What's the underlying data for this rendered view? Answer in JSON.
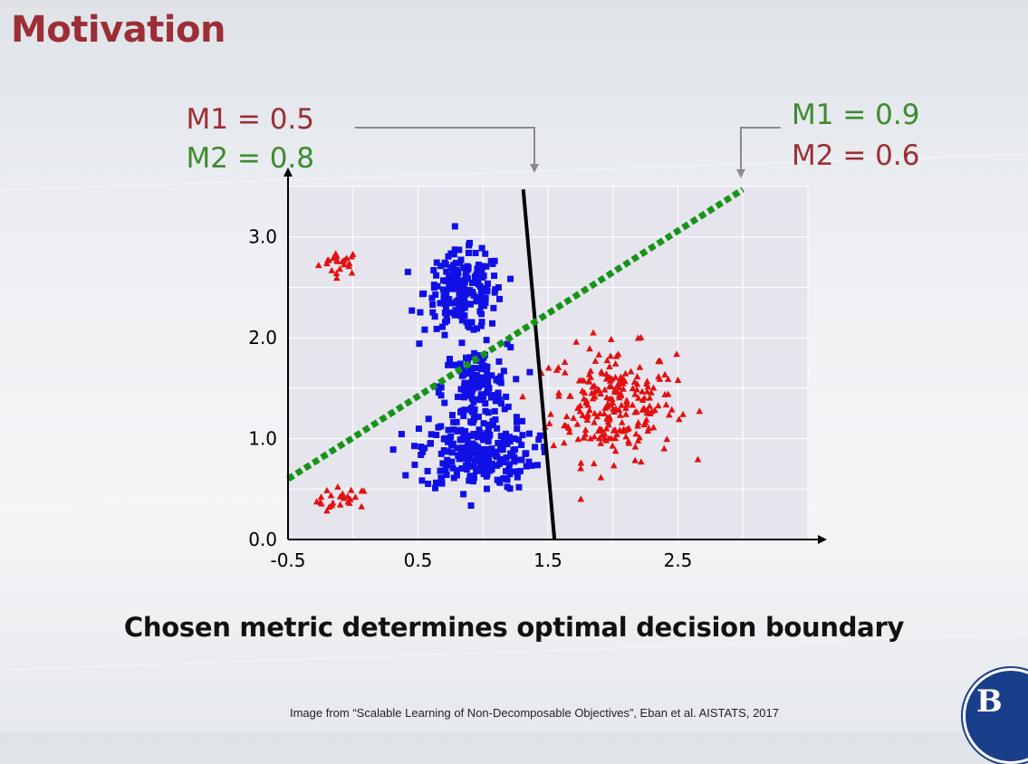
{
  "slide": {
    "title": "Motivation",
    "caption": "Chosen metric determines optimal decision boundary",
    "source": "Image from “Scalable Learning of Non-Decomposable Objectives”, Eban et al. AISTATS, 2017",
    "logo_mark": "B"
  },
  "annotations": {
    "left": {
      "m1": "M1 = 0.5",
      "m2": "M2 = 0.8"
    },
    "right": {
      "m1": "M1 = 0.9",
      "m2": "M2 = 0.6"
    }
  },
  "colors": {
    "m1": "#9b2f35",
    "m2": "#3d8b2f",
    "positive": "#e31010",
    "negative": "#1010e6",
    "plot_bg": "#e6e5ee",
    "solid_boundary": "#000000",
    "dotted_boundary": "#179417"
  },
  "chart_data": {
    "type": "scatter",
    "xlim": [
      -0.5,
      3.5
    ],
    "ylim": [
      0.0,
      3.5
    ],
    "x_ticks": [
      "-0.5",
      "0.5",
      "1.5",
      "2.5"
    ],
    "x_tick_values": [
      -0.5,
      0.5,
      1.5,
      2.5
    ],
    "y_ticks": [
      "0.0",
      "1.0",
      "2.0",
      "3.0"
    ],
    "y_tick_values": [
      0.0,
      1.0,
      2.0,
      3.0
    ],
    "grid": true,
    "series": [
      {
        "marker": "triangle",
        "color": "#e31010",
        "clusters": [
          {
            "cx": -0.1,
            "cy": 2.75,
            "sx": 0.08,
            "sy": 0.06,
            "n": 22
          },
          {
            "cx": -0.08,
            "cy": 0.38,
            "sx": 0.1,
            "sy": 0.07,
            "n": 24
          },
          {
            "cx": 2.0,
            "cy": 1.35,
            "sx": 0.24,
            "sy": 0.28,
            "n": 240
          }
        ]
      },
      {
        "marker": "square",
        "color": "#1010e6",
        "clusters": [
          {
            "cx": 0.85,
            "cy": 2.45,
            "sx": 0.15,
            "sy": 0.2,
            "n": 190
          },
          {
            "cx": 0.95,
            "cy": 1.5,
            "sx": 0.13,
            "sy": 0.2,
            "n": 140
          },
          {
            "cx": 0.95,
            "cy": 0.85,
            "sx": 0.22,
            "sy": 0.18,
            "n": 230
          }
        ]
      }
    ],
    "boundaries": [
      {
        "style": "solid",
        "x1": 1.31,
        "y1": 3.47,
        "x2": 1.55,
        "y2": 0.0
      },
      {
        "style": "dotted",
        "x1": -0.5,
        "y1": 0.6,
        "x2": 3.0,
        "y2": 3.47
      }
    ]
  }
}
